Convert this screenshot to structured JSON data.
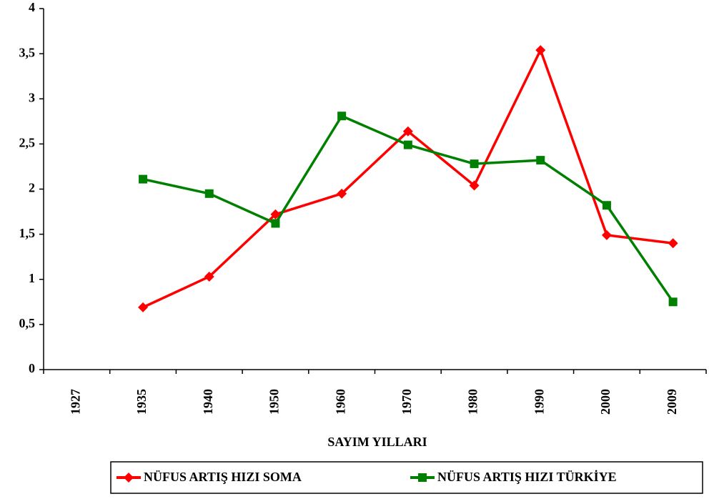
{
  "chart_data": {
    "type": "line",
    "x_label": "SAYIM YILLARI",
    "categories": [
      "1927",
      "1935",
      "1940",
      "1950",
      "1960",
      "1970",
      "1980",
      "1990",
      "2000",
      "2009"
    ],
    "series": [
      {
        "name": "NÜFUS ARTIŞ HIZI SOMA",
        "color": "#ff0000",
        "marker": "diamond",
        "values": [
          null,
          0.69,
          1.03,
          1.72,
          1.95,
          2.64,
          2.04,
          3.54,
          1.49,
          1.4
        ]
      },
      {
        "name": "NÜFUS ARTIŞ HIZI TÜRKİYE",
        "color": "#008000",
        "marker": "square",
        "values": [
          null,
          2.11,
          1.95,
          1.62,
          2.81,
          2.49,
          2.28,
          2.32,
          1.82,
          0.75
        ]
      }
    ],
    "ylim": [
      0,
      4
    ],
    "yticks": [
      0,
      {
        "value": 0.5,
        "label": "0,5"
      },
      1,
      {
        "value": 1.5,
        "label": "1,5"
      },
      2,
      {
        "value": 2.5,
        "label": "2,5"
      },
      3,
      {
        "value": 3.5,
        "label": "3,5"
      },
      4
    ],
    "grid": false,
    "legend": "bottom"
  }
}
